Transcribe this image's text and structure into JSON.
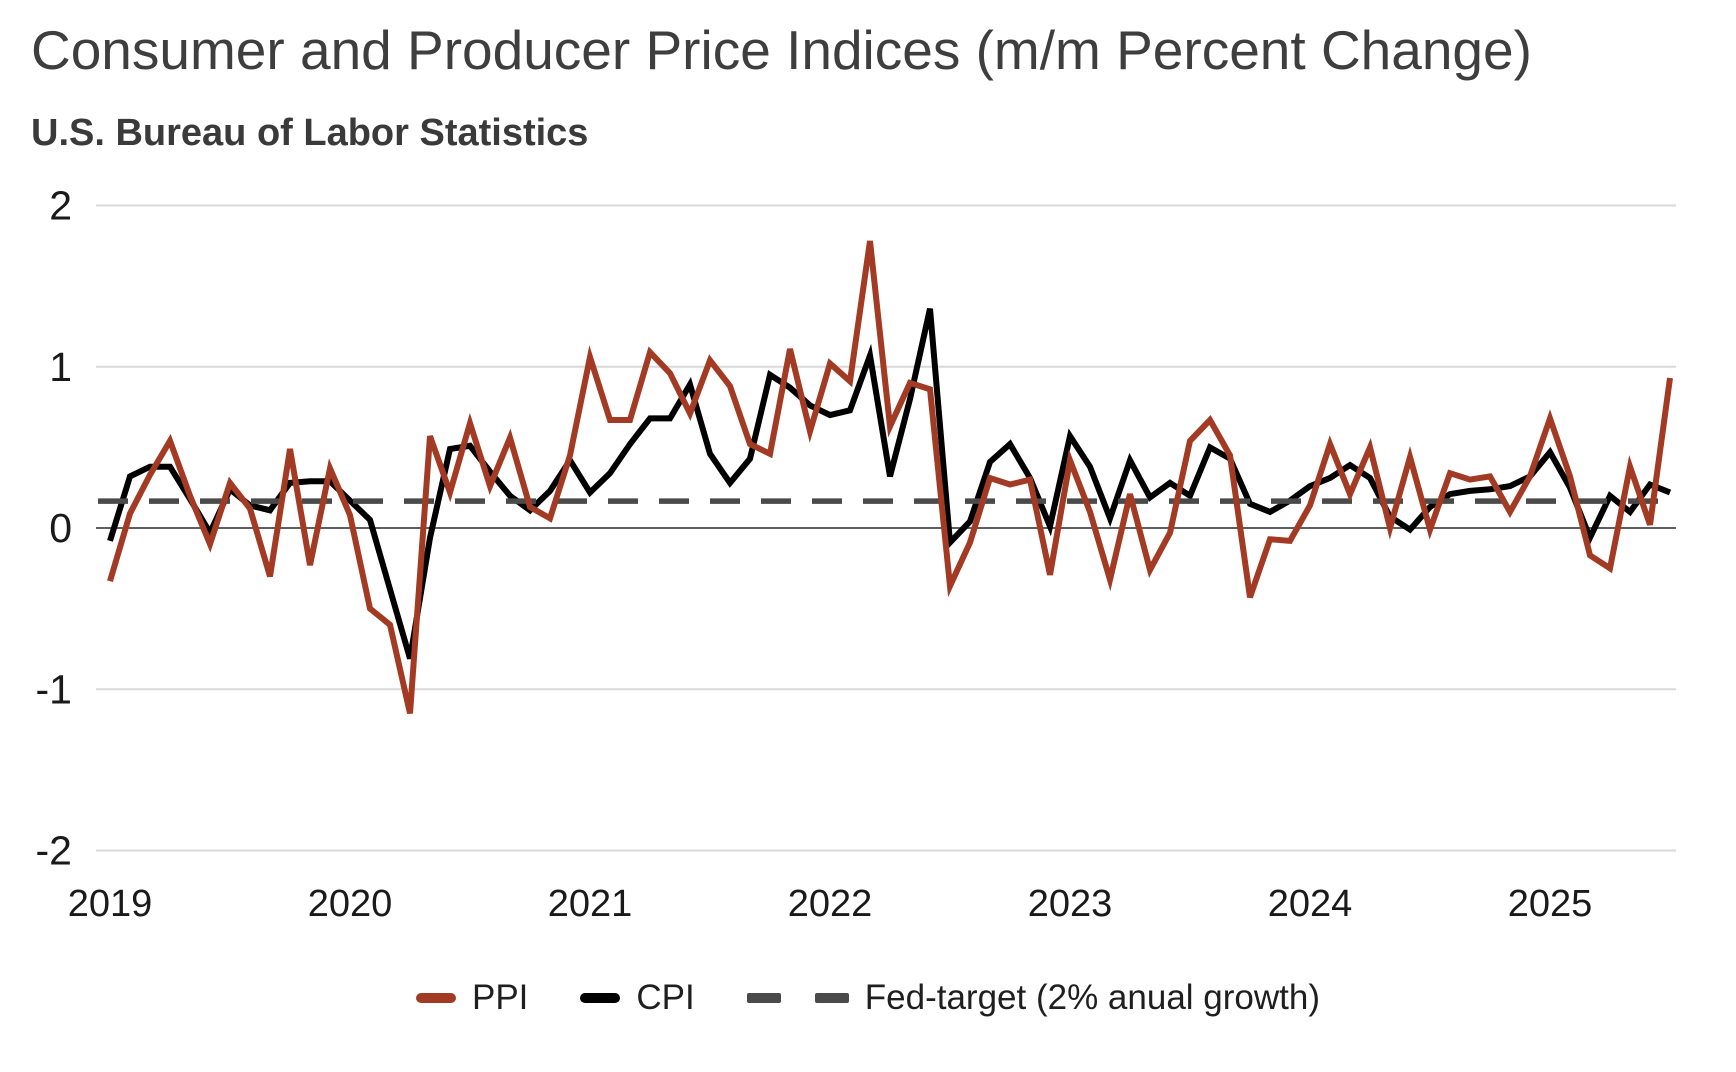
{
  "header": {
    "title": "Consumer and Producer Price Indices (m/m Percent Change)",
    "subtitle": "U.S. Bureau of Labor Statistics"
  },
  "colors": {
    "ppi": "#A33B24",
    "cpi": "#000000",
    "fed_target": "#4A4A4A",
    "gridline": "#D9D9D9",
    "zero_line": "#5F5F5F",
    "axis_text": "#1A1A1A",
    "title_text": "#3E3E3E",
    "background": "#FFFFFF"
  },
  "legend": {
    "items": [
      {
        "label": "PPI",
        "swatch": "solid",
        "color": "#A33B24"
      },
      {
        "label": "CPI",
        "swatch": "solid",
        "color": "#000000"
      },
      {
        "label": "Fed-target (2% anual growth)",
        "swatch": "dashed",
        "color": "#4A4A4A"
      }
    ]
  },
  "chart_data": {
    "type": "line",
    "title": "Consumer and Producer Price Indices (m/m Percent Change)",
    "subtitle": "U.S. Bureau of Labor Statistics",
    "xlabel": "",
    "ylabel": "",
    "x_start": "2019-01",
    "x_end": "2025-07",
    "x_frequency": "monthly",
    "n_points": 79,
    "x_tick_labels": [
      "2019",
      "2020",
      "2021",
      "2022",
      "2023",
      "2024",
      "2025"
    ],
    "y_ticks": [
      2,
      1,
      0,
      -1,
      -2
    ],
    "ylim": [
      -2,
      2
    ],
    "grid": "horizontal",
    "legend_position": "bottom",
    "series": [
      {
        "name": "PPI",
        "color": "#A33B24",
        "style": "solid",
        "values": [
          -0.33,
          0.09,
          0.33,
          0.54,
          0.2,
          -0.1,
          0.28,
          0.12,
          -0.3,
          0.49,
          -0.23,
          0.37,
          0.08,
          -0.5,
          -0.6,
          -1.15,
          0.57,
          0.22,
          0.65,
          0.26,
          0.56,
          0.13,
          0.06,
          0.45,
          1.06,
          0.67,
          0.67,
          1.09,
          0.96,
          0.71,
          1.04,
          0.88,
          0.52,
          0.46,
          1.11,
          0.6,
          1.02,
          0.91,
          1.78,
          0.63,
          0.9,
          0.86,
          -0.36,
          -0.09,
          0.31,
          0.27,
          0.3,
          -0.29,
          0.42,
          0.1,
          -0.32,
          0.21,
          -0.26,
          -0.03,
          0.54,
          0.67,
          0.45,
          -0.43,
          -0.07,
          -0.08,
          0.14,
          0.52,
          0.21,
          0.5,
          0.0,
          0.44,
          -0.01,
          0.34,
          0.3,
          0.32,
          0.1,
          0.32,
          0.68,
          0.32,
          -0.17,
          -0.25,
          0.38,
          0.02,
          0.93
        ]
      },
      {
        "name": "CPI",
        "color": "#000000",
        "style": "solid",
        "values": [
          -0.08,
          0.32,
          0.38,
          0.38,
          0.18,
          -0.03,
          0.24,
          0.14,
          0.11,
          0.28,
          0.29,
          0.29,
          0.17,
          0.05,
          -0.38,
          -0.81,
          -0.06,
          0.49,
          0.51,
          0.35,
          0.2,
          0.11,
          0.23,
          0.42,
          0.22,
          0.34,
          0.52,
          0.68,
          0.68,
          0.89,
          0.46,
          0.28,
          0.43,
          0.95,
          0.87,
          0.76,
          0.7,
          0.73,
          1.07,
          0.32,
          0.8,
          1.36,
          -0.09,
          0.04,
          0.41,
          0.52,
          0.31,
          0.01,
          0.57,
          0.38,
          0.06,
          0.42,
          0.19,
          0.28,
          0.2,
          0.5,
          0.43,
          0.15,
          0.1,
          0.17,
          0.26,
          0.31,
          0.39,
          0.31,
          0.07,
          -0.01,
          0.13,
          0.21,
          0.23,
          0.24,
          0.26,
          0.32,
          0.47,
          0.25,
          -0.06,
          0.2,
          0.1,
          0.27,
          0.22
        ]
      },
      {
        "name": "Fed-target (2% anual growth)",
        "color": "#4A4A4A",
        "style": "dashed",
        "constant_value": 0.167
      }
    ]
  }
}
